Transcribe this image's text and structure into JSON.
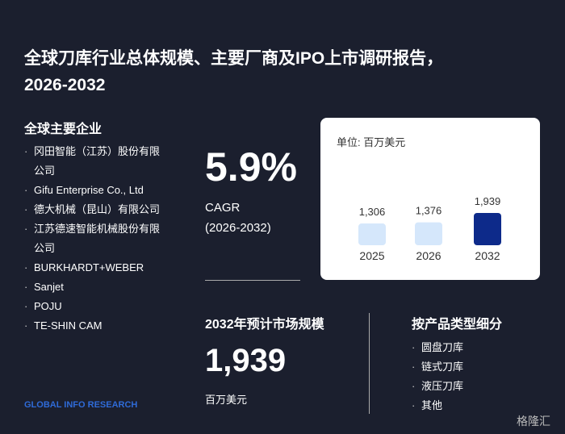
{
  "header": {
    "title_line1": "全球刀库行业总体规模、主要厂商及IPO上市调研报告，",
    "title_line2": "2026-2032"
  },
  "companies": {
    "title": "全球主要企业",
    "items": [
      "冈田智能（江苏）股份有限公司",
      "Gifu Enterprise Co., Ltd",
      "德大机械（昆山）有限公司",
      "江苏德速智能机械股份有限公司",
      "BURKHARDT+WEBER",
      "Sanjet",
      "POJU",
      "TE-SHIN CAM"
    ]
  },
  "cagr": {
    "value": "5.9%",
    "label": "CAGR",
    "period": "(2026-2032)"
  },
  "market": {
    "title": "2032年预计市场规模",
    "value": "1,939",
    "unit": "百万美元"
  },
  "segments": {
    "title": "按产品类型细分",
    "items": [
      "圆盘刀库",
      "链式刀库",
      "液压刀库",
      "其他"
    ]
  },
  "chart_data": {
    "type": "bar",
    "unit_label": "单位: 百万美元",
    "categories": [
      "2025",
      "2026",
      "2032"
    ],
    "values": [
      1306,
      1376,
      1939
    ],
    "value_labels": [
      "1,306",
      "1,376",
      "1,939"
    ],
    "colors": [
      "#d5e7fb",
      "#d5e7fb",
      "#0d2a8a"
    ]
  },
  "logo_text": "GLOBAL INFO RESEARCH",
  "watermark": "格隆汇"
}
